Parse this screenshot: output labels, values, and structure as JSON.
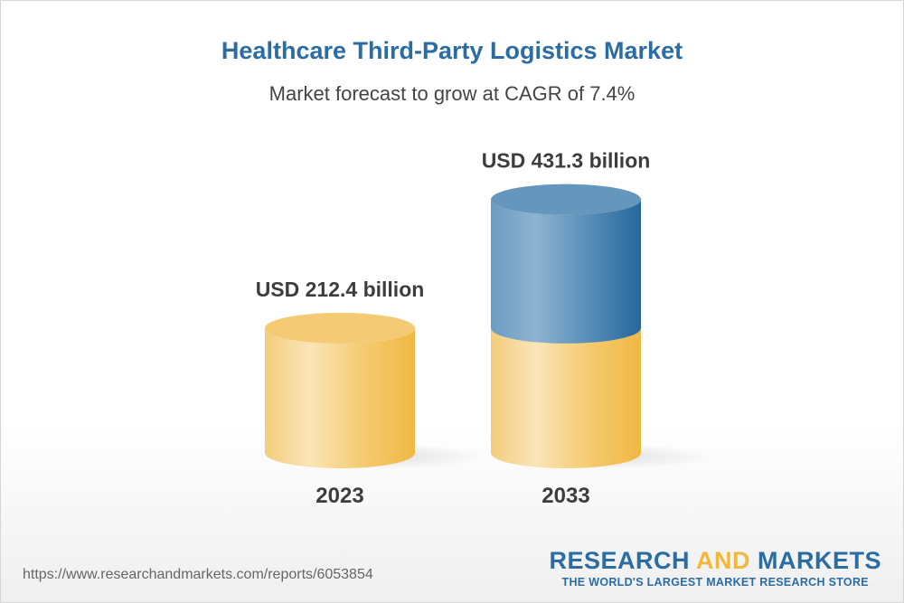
{
  "title": "Healthcare Third-Party Logistics Market",
  "subtitle": "Market forecast to grow at CAGR of 7.4%",
  "chart_data": {
    "type": "bar",
    "style": "3d-cylinder",
    "title": "Healthcare Third-Party Logistics Market",
    "subtitle": "Market forecast to grow at CAGR of 7.4%",
    "categories": [
      "2023",
      "2033"
    ],
    "values": [
      212.4,
      431.3
    ],
    "unit": "USD billion",
    "data_labels": [
      "USD 212.4 billion",
      "USD 431.3 billion"
    ],
    "colors": {
      "base": "#f2c05a",
      "growth": "#3a78aa"
    },
    "grid": false
  },
  "footer": {
    "url": "https://www.researchandmarkets.com/reports/6053854",
    "logo_word1": "RESEARCH",
    "logo_word2": "AND",
    "logo_word3": "MARKETS",
    "logo_tagline": "THE WORLD'S LARGEST MARKET RESEARCH STORE"
  }
}
